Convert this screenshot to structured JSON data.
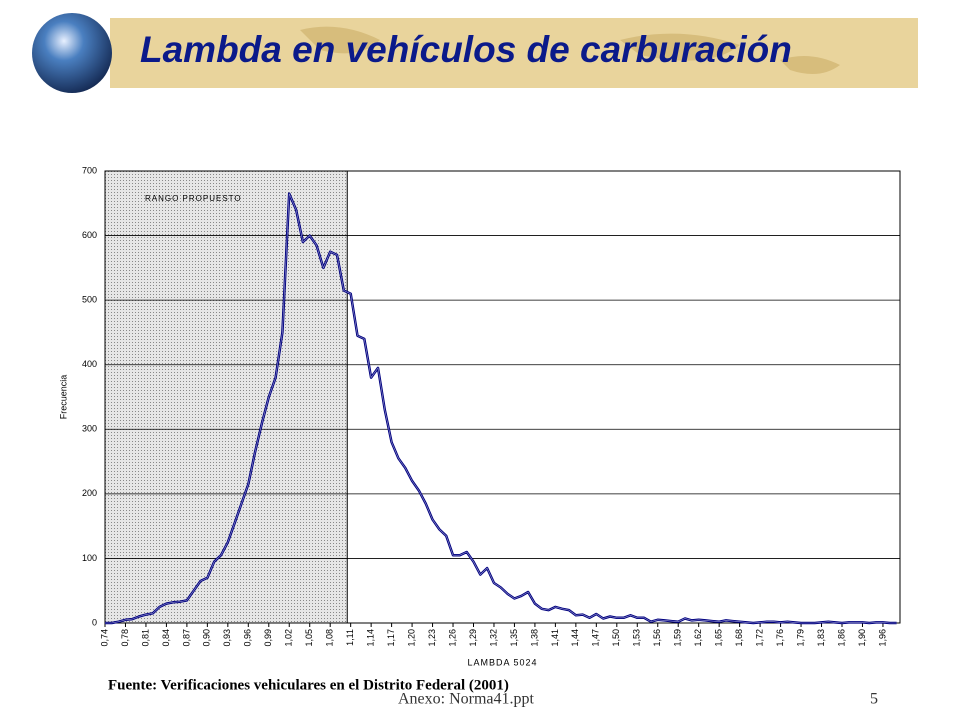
{
  "header": {
    "title": "Lambda en vehículos de carburación"
  },
  "chart_data": {
    "type": "line",
    "x_label": "LAMBDA 5024",
    "y_label": "Frecuencia",
    "categories": [
      "0,74",
      null,
      null,
      "0,78",
      null,
      null,
      "0,81",
      null,
      null,
      "0,84",
      null,
      null,
      "0,87",
      null,
      null,
      "0,90",
      null,
      null,
      "0,93",
      null,
      null,
      "0,96",
      null,
      null,
      "0,99",
      null,
      null,
      "1,02",
      null,
      null,
      "1,05",
      null,
      null,
      "1,08",
      null,
      null,
      "1,11",
      null,
      null,
      "1,14",
      null,
      null,
      "1,17",
      null,
      null,
      "1,20",
      null,
      null,
      "1,23",
      null,
      null,
      "1,26",
      null,
      null,
      "1,29",
      null,
      null,
      "1,32",
      null,
      null,
      "1,35",
      null,
      null,
      "1,38",
      null,
      null,
      "1,41",
      null,
      null,
      "1,44",
      null,
      null,
      "1,47",
      null,
      null,
      "1,50",
      null,
      null,
      "1,53",
      null,
      null,
      "1,56",
      null,
      null,
      "1,59",
      null,
      null,
      "1,62",
      null,
      null,
      "1,65",
      null,
      null,
      "1,68",
      null,
      null,
      "1,72",
      null,
      null,
      "1,76",
      null,
      null,
      "1,79",
      null,
      null,
      "1,83",
      null,
      null,
      "1,86",
      null,
      null,
      "1,90",
      null,
      null,
      "1,96",
      null,
      null
    ],
    "series": [
      {
        "name": "Frecuencia",
        "color": "#000080",
        "values": [
          0,
          0,
          2,
          5,
          6,
          10,
          13,
          15,
          25,
          30,
          32,
          33,
          35,
          50,
          65,
          70,
          95,
          105,
          125,
          155,
          185,
          215,
          265,
          310,
          350,
          380,
          450,
          665,
          640,
          590,
          600,
          585,
          550,
          575,
          570,
          515,
          510,
          445,
          440,
          380,
          395,
          330,
          280,
          255,
          240,
          220,
          205,
          185,
          160,
          145,
          135,
          105,
          105,
          110,
          95,
          75,
          85,
          62,
          55,
          45,
          38,
          42,
          48,
          30,
          22,
          20,
          25,
          22,
          20,
          12,
          13,
          8,
          14,
          7,
          10,
          8,
          8,
          12,
          8,
          8,
          2,
          5,
          4,
          3,
          2,
          7,
          4,
          5,
          4,
          3,
          2,
          4,
          3,
          2,
          1,
          0,
          1,
          2,
          2,
          1,
          2,
          1,
          0,
          0,
          0,
          1,
          2,
          1,
          0,
          1,
          1,
          1,
          0,
          1,
          1,
          0,
          0
        ]
      }
    ],
    "ylim": [
      0,
      700
    ],
    "yticks": [
      0,
      100,
      200,
      300,
      400,
      500,
      600,
      700
    ],
    "grid": true,
    "highlight": {
      "label": "RANGO PROPUESTO",
      "end": 35.5
    }
  },
  "source": "Fuente: Verificaciones vehiculares en el Distrito Federal (2001)",
  "footer": {
    "file": "Anexo: Norma41.ppt",
    "page": "5"
  }
}
